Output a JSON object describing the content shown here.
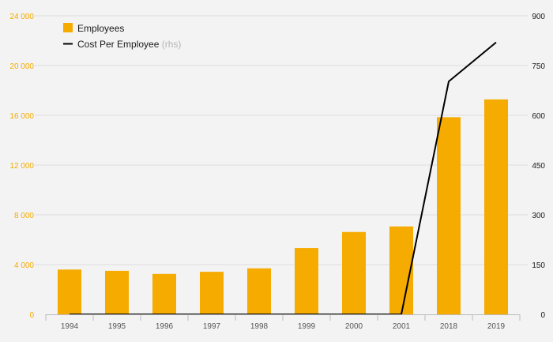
{
  "chart_data": {
    "type": "bar",
    "categories": [
      "1994",
      "1995",
      "1996",
      "1997",
      "1998",
      "1999",
      "2000",
      "2001",
      "2018",
      "2019"
    ],
    "series": [
      {
        "name": "Employees",
        "type": "bar",
        "axis": "left",
        "color": "#f5ab00",
        "values": [
          3600,
          3500,
          3250,
          3420,
          3700,
          5330,
          6620,
          7070,
          15850,
          17280
        ]
      },
      {
        "name": "Cost Per Employee",
        "name_suffix": "(rhs)",
        "type": "line",
        "axis": "right",
        "color": "#000000",
        "values": [
          0,
          0,
          0,
          0,
          0,
          0,
          0,
          0,
          702,
          820
        ]
      }
    ],
    "y_left": {
      "ylim": [
        0,
        24000
      ],
      "ticks": [
        0,
        4000,
        8000,
        12000,
        16000,
        20000,
        24000
      ],
      "tick_labels": [
        "0",
        "4 000",
        "8 000",
        "12 000",
        "16 000",
        "20 000",
        "24 000"
      ],
      "color": "#f5ab00"
    },
    "y_right": {
      "ylim": [
        0,
        900
      ],
      "ticks": [
        0,
        150,
        300,
        450,
        600,
        750,
        900
      ],
      "tick_labels": [
        "0",
        "150",
        "300",
        "450",
        "600",
        "750",
        "900"
      ],
      "color": "#1a1a1a"
    },
    "grid": true,
    "legend": "top-left",
    "title": "",
    "xlabel": "",
    "ylabel": ""
  }
}
